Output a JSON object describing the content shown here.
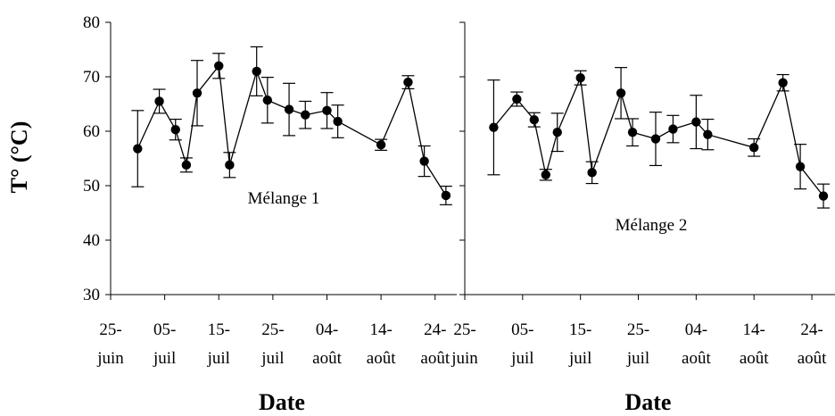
{
  "ylabel": "T° (°C)",
  "y_ticks": [
    "30",
    "40",
    "50",
    "60",
    "70",
    "80"
  ],
  "x_ticks": [
    {
      "line1": "25-",
      "line2": "juin"
    },
    {
      "line1": "05-",
      "line2": "juil"
    },
    {
      "line1": "15-",
      "line2": "juil"
    },
    {
      "line1": "25-",
      "line2": "juil"
    },
    {
      "line1": "04-",
      "line2": "août"
    },
    {
      "line1": "14-",
      "line2": "août"
    },
    {
      "line1": "24-",
      "line2": "août"
    }
  ],
  "chart_data": [
    {
      "type": "line",
      "annotation": "Mélange 1",
      "xlabel": "Date",
      "ylabel": "T° (°C)",
      "ylim": [
        30,
        80
      ],
      "xlim": [
        "2008-06-25",
        "2008-08-28"
      ],
      "x_ticks": [
        "25-juin",
        "05-juil",
        "15-juil",
        "25-juil",
        "04-août",
        "14-août",
        "24-août"
      ],
      "grid": false,
      "error_bars": true,
      "points": [
        {
          "x": "2008-06-30",
          "y": 56.8,
          "err": 7.0
        },
        {
          "x": "2008-07-04",
          "y": 65.5,
          "err": 2.2
        },
        {
          "x": "2008-07-07",
          "y": 60.3,
          "err": 1.9
        },
        {
          "x": "2008-07-09",
          "y": 53.8,
          "err": 1.3
        },
        {
          "x": "2008-07-11",
          "y": 67.0,
          "err": 6.0
        },
        {
          "x": "2008-07-15",
          "y": 72.0,
          "err": 2.3
        },
        {
          "x": "2008-07-17",
          "y": 53.8,
          "err": 2.3
        },
        {
          "x": "2008-07-22",
          "y": 71.0,
          "err": 4.5
        },
        {
          "x": "2008-07-24",
          "y": 65.7,
          "err": 4.2
        },
        {
          "x": "2008-07-28",
          "y": 64.0,
          "err": 4.8
        },
        {
          "x": "2008-07-31",
          "y": 63.0,
          "err": 2.5
        },
        {
          "x": "2008-08-04",
          "y": 63.8,
          "err": 3.3
        },
        {
          "x": "2008-08-06",
          "y": 61.8,
          "err": 3.0
        },
        {
          "x": "2008-08-14",
          "y": 57.5,
          "err": 1.0
        },
        {
          "x": "2008-08-19",
          "y": 69.0,
          "err": 1.2
        },
        {
          "x": "2008-08-22",
          "y": 54.5,
          "err": 2.8
        },
        {
          "x": "2008-08-26",
          "y": 48.2,
          "err": 1.7
        }
      ]
    },
    {
      "type": "line",
      "annotation": "Mélange 2",
      "xlabel": "Date",
      "ylabel": "",
      "ylim": [
        30,
        80
      ],
      "xlim": [
        "2008-06-25",
        "2008-08-28"
      ],
      "x_ticks": [
        "25-juin",
        "05-juil",
        "15-juil",
        "25-juil",
        "04-août",
        "14-août",
        "24-août"
      ],
      "grid": false,
      "error_bars": true,
      "points": [
        {
          "x": "2008-06-30",
          "y": 60.7,
          "err": 8.7
        },
        {
          "x": "2008-07-04",
          "y": 65.9,
          "err": 1.3
        },
        {
          "x": "2008-07-07",
          "y": 62.1,
          "err": 1.3
        },
        {
          "x": "2008-07-09",
          "y": 52.0,
          "err": 1.0
        },
        {
          "x": "2008-07-11",
          "y": 59.8,
          "err": 3.5
        },
        {
          "x": "2008-07-15",
          "y": 69.8,
          "err": 1.3
        },
        {
          "x": "2008-07-17",
          "y": 52.4,
          "err": 2.0
        },
        {
          "x": "2008-07-22",
          "y": 67.0,
          "err": 4.7
        },
        {
          "x": "2008-07-24",
          "y": 59.8,
          "err": 2.5
        },
        {
          "x": "2008-07-28",
          "y": 58.6,
          "err": 4.9
        },
        {
          "x": "2008-07-31",
          "y": 60.4,
          "err": 2.5
        },
        {
          "x": "2008-08-04",
          "y": 61.7,
          "err": 4.9
        },
        {
          "x": "2008-08-06",
          "y": 59.4,
          "err": 2.8
        },
        {
          "x": "2008-08-14",
          "y": 57.0,
          "err": 1.6
        },
        {
          "x": "2008-08-19",
          "y": 68.9,
          "err": 1.5
        },
        {
          "x": "2008-08-22",
          "y": 53.5,
          "err": 4.1
        },
        {
          "x": "2008-08-26",
          "y": 48.1,
          "err": 2.2
        }
      ]
    }
  ]
}
